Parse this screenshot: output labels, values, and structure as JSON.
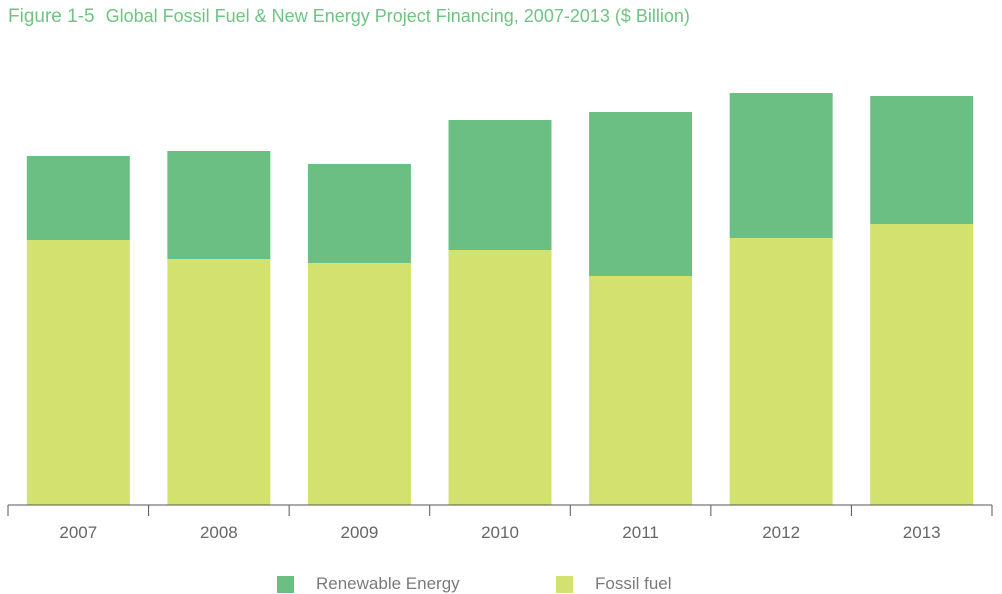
{
  "title": {
    "figure": "Figure 1-5",
    "text": "Global Fossil Fuel & New Energy Project Financing, 2007-2013 ($ Billion)"
  },
  "colors": {
    "renewable": "#6bbf82",
    "fossil": "#d3e16f",
    "axis": "#555555",
    "tick_label": "#666666",
    "title": "#6fc383"
  },
  "legend": {
    "items": [
      {
        "label": "Renewable Energy",
        "color": "#6bbf82"
      },
      {
        "label": "Fossil fuel",
        "color": "#d3e16f"
      }
    ]
  },
  "chart_data": {
    "type": "bar",
    "stacked": true,
    "categories": [
      "2007",
      "2008",
      "2009",
      "2010",
      "2011",
      "2012",
      "2013"
    ],
    "series": [
      {
        "name": "Fossil fuel",
        "values": [
          265,
          246,
          242,
          255,
          229,
          267,
          281
        ]
      },
      {
        "name": "Renewable Energy",
        "values": [
          84,
          108,
          99,
          130,
          164,
          145,
          128
        ]
      }
    ],
    "ylim": [
      0,
      420
    ],
    "xlabel": "",
    "ylabel": "",
    "grid": false,
    "legend_position": "bottom"
  }
}
